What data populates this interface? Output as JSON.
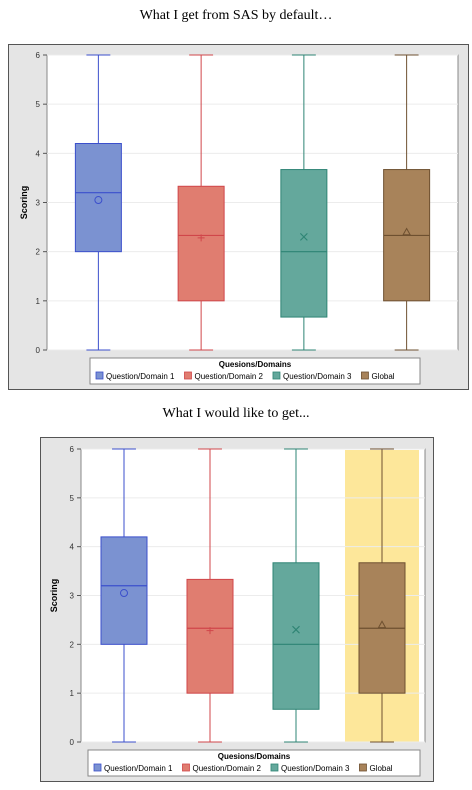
{
  "captions": {
    "top": "What I get from SAS by default…",
    "bottom": "What I would like to get..."
  },
  "chart_data": [
    {
      "type": "box",
      "ylabel": "Scoring",
      "xlabel": "Quesions/Domains",
      "ylim": [
        0,
        6
      ],
      "yticks": [
        0,
        1,
        2,
        3,
        4,
        5,
        6
      ],
      "grid": true,
      "legend_position": "bottom",
      "highlight_category": null,
      "series": [
        {
          "name": "Question/Domain 1",
          "color": "#7b92d1",
          "edge": "#3b4fcc",
          "mean_marker": "circle",
          "min": 0,
          "q1": 2.0,
          "median": 3.2,
          "q3": 4.2,
          "max": 6,
          "mean": 3.05
        },
        {
          "name": "Question/Domain 2",
          "color": "#e07d70",
          "edge": "#d0464a",
          "mean_marker": "plus",
          "min": 0,
          "q1": 1.0,
          "median": 2.33,
          "q3": 3.33,
          "max": 6,
          "mean": 2.28
        },
        {
          "name": "Question/Domain 3",
          "color": "#64a89c",
          "edge": "#2e8474",
          "mean_marker": "x",
          "min": 0,
          "q1": 0.67,
          "median": 2.0,
          "q3": 3.67,
          "max": 6,
          "mean": 2.3
        },
        {
          "name": "Global",
          "color": "#a8835a",
          "edge": "#6e5030",
          "mean_marker": "triangle",
          "min": 0,
          "q1": 1.0,
          "median": 2.33,
          "q3": 3.67,
          "max": 6,
          "mean": 2.4
        }
      ]
    },
    {
      "type": "box",
      "ylabel": "Scoring",
      "xlabel": "Quesions/Domains",
      "ylim": [
        0,
        6
      ],
      "yticks": [
        0,
        1,
        2,
        3,
        4,
        5,
        6
      ],
      "grid": true,
      "legend_position": "bottom",
      "highlight_category": 3,
      "highlight_color": "#fde79a",
      "series": [
        {
          "name": "Question/Domain 1",
          "color": "#7b92d1",
          "edge": "#3b4fcc",
          "mean_marker": "circle",
          "min": 0,
          "q1": 2.0,
          "median": 3.2,
          "q3": 4.2,
          "max": 6,
          "mean": 3.05
        },
        {
          "name": "Question/Domain 2",
          "color": "#e07d70",
          "edge": "#d0464a",
          "mean_marker": "plus",
          "min": 0,
          "q1": 1.0,
          "median": 2.33,
          "q3": 3.33,
          "max": 6,
          "mean": 2.28
        },
        {
          "name": "Question/Domain 3",
          "color": "#64a89c",
          "edge": "#2e8474",
          "mean_marker": "x",
          "min": 0,
          "q1": 0.67,
          "median": 2.0,
          "q3": 3.67,
          "max": 6,
          "mean": 2.3
        },
        {
          "name": "Global",
          "color": "#a8835a",
          "edge": "#6e5030",
          "mean_marker": "triangle",
          "min": 0,
          "q1": 1.0,
          "median": 2.33,
          "q3": 3.67,
          "max": 6,
          "mean": 2.4
        }
      ]
    }
  ]
}
